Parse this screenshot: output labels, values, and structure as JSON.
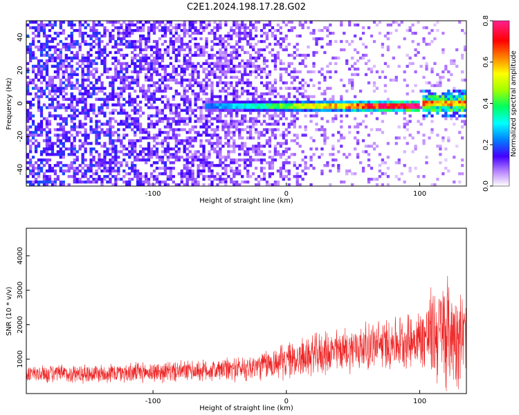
{
  "figure_title": "C2E1.2024.198.17.28.G02",
  "colors": {
    "snr_line": "#ee2222",
    "frame": "#000000",
    "background": "#ffffff"
  },
  "chart_data": [
    {
      "type": "heatmap",
      "title": "C2E1.2024.198.17.28.G02",
      "xlabel": "Height of straight line (km)",
      "ylabel": "Frequency (Hz)",
      "xlim": [
        -195,
        135
      ],
      "ylim": [
        -50,
        50
      ],
      "xticks": [
        -100,
        0,
        100
      ],
      "yticks": [
        -40,
        -20,
        0,
        20,
        40
      ],
      "colorbar": {
        "label": "Normalized spectral amplitude",
        "range": [
          0.0,
          0.8
        ],
        "ticks": [
          "0.0",
          "0.2",
          "0.4",
          "0.6",
          "0.8"
        ],
        "colormap": [
          "#ffffff",
          "#b070ff",
          "#4400ff",
          "#0080ff",
          "#00ffff",
          "#00ff60",
          "#a0ff00",
          "#ffff00",
          "#ff8000",
          "#ff0000",
          "#ff0080",
          "#ff2090"
        ]
      },
      "features": [
        {
          "name": "background noise",
          "x_range": [
            -195,
            135
          ],
          "freq_range": [
            -50,
            50
          ],
          "amplitude": "0.05-0.15, decreasing with height"
        },
        {
          "name": "carrier line",
          "x_range": [
            -60,
            100
          ],
          "freq_hz": -2,
          "peak_amplitude": 0.8
        },
        {
          "name": "broadened carrier",
          "x_range": [
            102,
            135
          ],
          "freq_hz": 0,
          "amplitude": "0.3-0.6"
        }
      ]
    },
    {
      "type": "line",
      "xlabel": "Height of straight line (km)",
      "ylabel": "SNR (10 * v/v)",
      "xlim": [
        -195,
        135
      ],
      "ylim": [
        0,
        4800
      ],
      "xticks": [
        -100,
        0,
        100
      ],
      "yticks": [
        1000,
        2000,
        3000,
        4000
      ],
      "series": [
        {
          "name": "SNR",
          "x": [
            -195,
            -175,
            -150,
            -125,
            -100,
            -75,
            -50,
            -25,
            0,
            25,
            50,
            75,
            100,
            110,
            120,
            130,
            135
          ],
          "mean": [
            560,
            570,
            580,
            600,
            620,
            650,
            680,
            760,
            950,
            1150,
            1300,
            1450,
            1600,
            1750,
            1800,
            1700,
            1650
          ],
          "spread": [
            300,
            300,
            320,
            330,
            340,
            350,
            380,
            450,
            600,
            700,
            750,
            850,
            950,
            1600,
            1900,
            1600,
            1300
          ]
        }
      ]
    }
  ]
}
